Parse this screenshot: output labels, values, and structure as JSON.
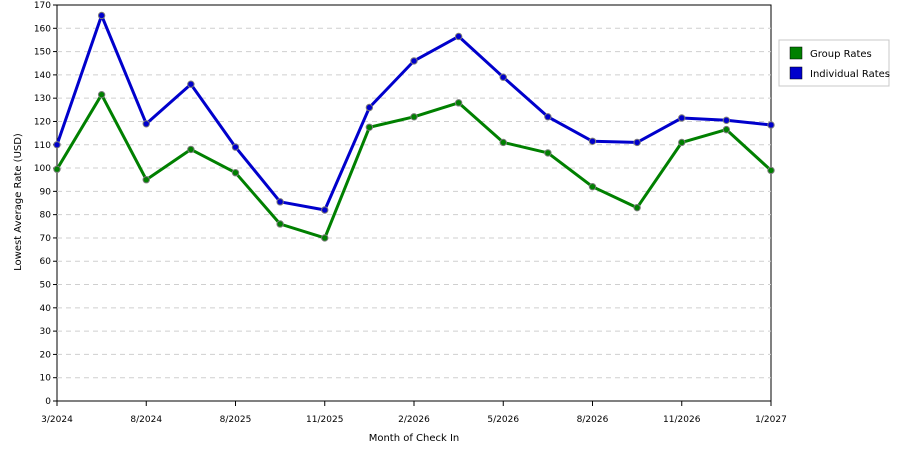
{
  "chart_data": {
    "type": "line",
    "title": "",
    "xlabel": "Month of Check In",
    "ylabel": "Lowest Average Rate (USD)",
    "ylim": [
      0,
      170
    ],
    "y_ticks": [
      0,
      10,
      20,
      30,
      40,
      50,
      60,
      70,
      80,
      90,
      100,
      110,
      120,
      130,
      140,
      150,
      160,
      170
    ],
    "x_tick_labels": [
      "3/2024",
      "8/2024",
      "8/2025",
      "11/2025",
      "2/2026",
      "5/2026",
      "8/2026",
      "11/2026",
      "1/2027"
    ],
    "grid": true,
    "legend_position": "right",
    "series": [
      {
        "name": "Group Rates",
        "color": "#008000",
        "values": [
          99.5,
          131.5,
          95,
          108,
          98,
          76,
          70,
          117.5,
          122,
          128,
          111,
          106.5,
          92,
          83,
          111,
          116.5,
          99
        ]
      },
      {
        "name": "Individual Rates",
        "color": "#0000cc",
        "values": [
          110,
          165.5,
          119,
          136,
          109,
          85.5,
          82,
          126,
          146,
          156.5,
          139,
          122,
          111.5,
          111,
          121.5,
          120.5,
          118.5
        ]
      }
    ]
  }
}
